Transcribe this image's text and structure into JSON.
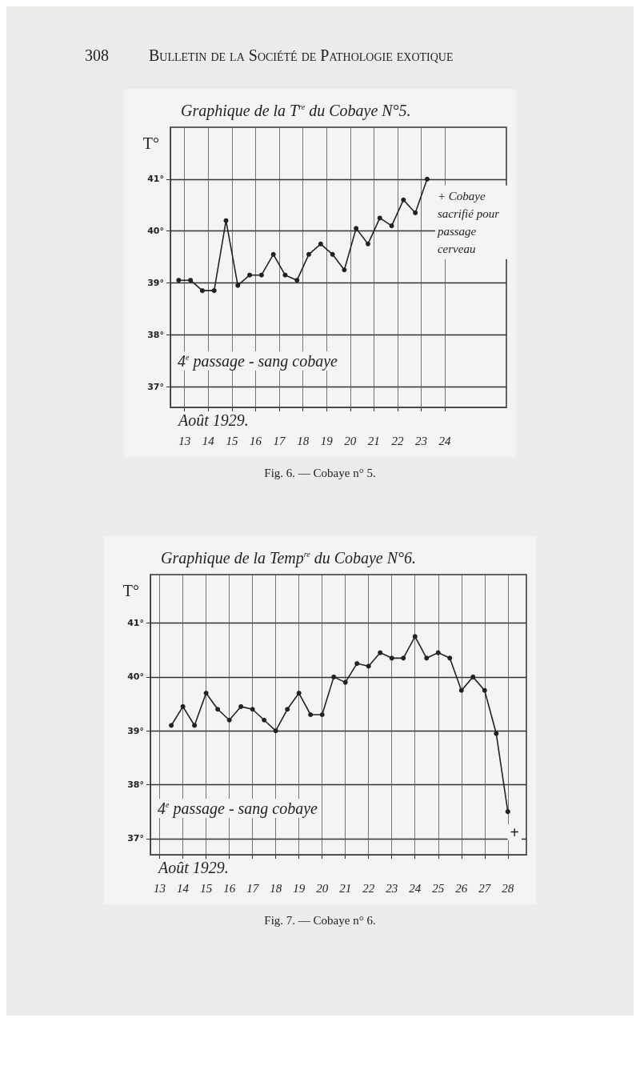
{
  "chart_data": [
    {
      "type": "line",
      "title": "Graphique de la T$^{re}$ du Cobaye N°5.",
      "xlabel": "Août 1929.",
      "ylabel": "T°",
      "x": [
        12.75,
        13.25,
        13.75,
        14.25,
        14.75,
        15.25,
        15.75,
        16.25,
        16.75,
        17.25,
        17.75,
        18.25,
        18.75,
        19.25,
        19.75,
        20.25,
        20.75,
        21.25,
        21.75,
        22.25,
        22.75,
        23.25
      ],
      "series": [
        {
          "color": "#222222",
          "values": [
            39.05,
            39.05,
            38.85,
            38.85,
            40.2,
            38.95,
            39.15,
            39.15,
            39.55,
            39.15,
            39.05,
            39.55,
            39.75,
            39.55,
            39.25,
            40.05,
            39.75,
            40.25,
            40.1,
            40.6,
            40.35,
            41.0
          ]
        }
      ],
      "xlim": [
        12.4,
        26.6
      ],
      "ylim": [
        36.6,
        42
      ],
      "xticks": [
        13,
        14,
        15,
        16,
        17,
        18,
        19,
        20,
        21,
        22,
        23,
        24
      ],
      "yticks": [
        {
          "value": 37,
          "label": "37°"
        },
        {
          "value": 38,
          "label": "38°"
        },
        {
          "value": 39,
          "label": "39°"
        },
        {
          "value": 40,
          "label": "40°"
        },
        {
          "value": 41,
          "label": "41°"
        }
      ],
      "grid": true,
      "marker": "circle",
      "line_style": "solid",
      "annotations": [
        "308",
        "Bulletin de la Société de Pathologie exotique",
        "4$^{e}$ passage - sang cobaye",
        {
          "text": "+ Cobaye sacrifié pour passage cerveau",
          "x": 23.25,
          "y": 41.0
        },
        "Fig. 6. — Cobaye n° 5."
      ]
    },
    {
      "type": "line",
      "title": "Graphique de la Temp$^{re}$ du Cobaye N°6.",
      "xlabel": "Août 1929.",
      "ylabel": "T°",
      "x": [
        13.5,
        14,
        14.5,
        15,
        15.5,
        16,
        16.5,
        17,
        17.5,
        18,
        18.5,
        19,
        19.5,
        20,
        20.5,
        21,
        21.5,
        22,
        22.5,
        23,
        23.5,
        24,
        24.5,
        25,
        25.5,
        26,
        26.5,
        27,
        27.5,
        28
      ],
      "series": [
        {
          "color": "#222222",
          "values": [
            39.1,
            39.45,
            39.1,
            39.7,
            39.4,
            39.2,
            39.45,
            39.4,
            39.2,
            39.0,
            39.4,
            39.7,
            39.3,
            39.3,
            40.0,
            39.9,
            40.25,
            40.2,
            40.45,
            40.35,
            40.35,
            40.75,
            40.35,
            40.45,
            40.35,
            39.75,
            40.0,
            39.75,
            38.95,
            37.5
          ]
        }
      ],
      "xlim": [
        12.6,
        28.8
      ],
      "ylim": [
        36.7,
        41.9
      ],
      "xticks": [
        13,
        14,
        15,
        16,
        17,
        18,
        19,
        20,
        21,
        22,
        23,
        24,
        25,
        26,
        27,
        28
      ],
      "yticks": [
        {
          "value": 37,
          "label": "37°"
        },
        {
          "value": 38,
          "label": "38°"
        },
        {
          "value": 39,
          "label": "39°"
        },
        {
          "value": 40,
          "label": "40°"
        },
        {
          "value": 41,
          "label": "41°"
        }
      ],
      "grid": true,
      "marker": "circle",
      "line_style": "solid",
      "annotations": [
        "4$^{e}$ passage - sang cobaye",
        "+",
        "Fig. 7. — Cobaye n° 6."
      ]
    }
  ]
}
